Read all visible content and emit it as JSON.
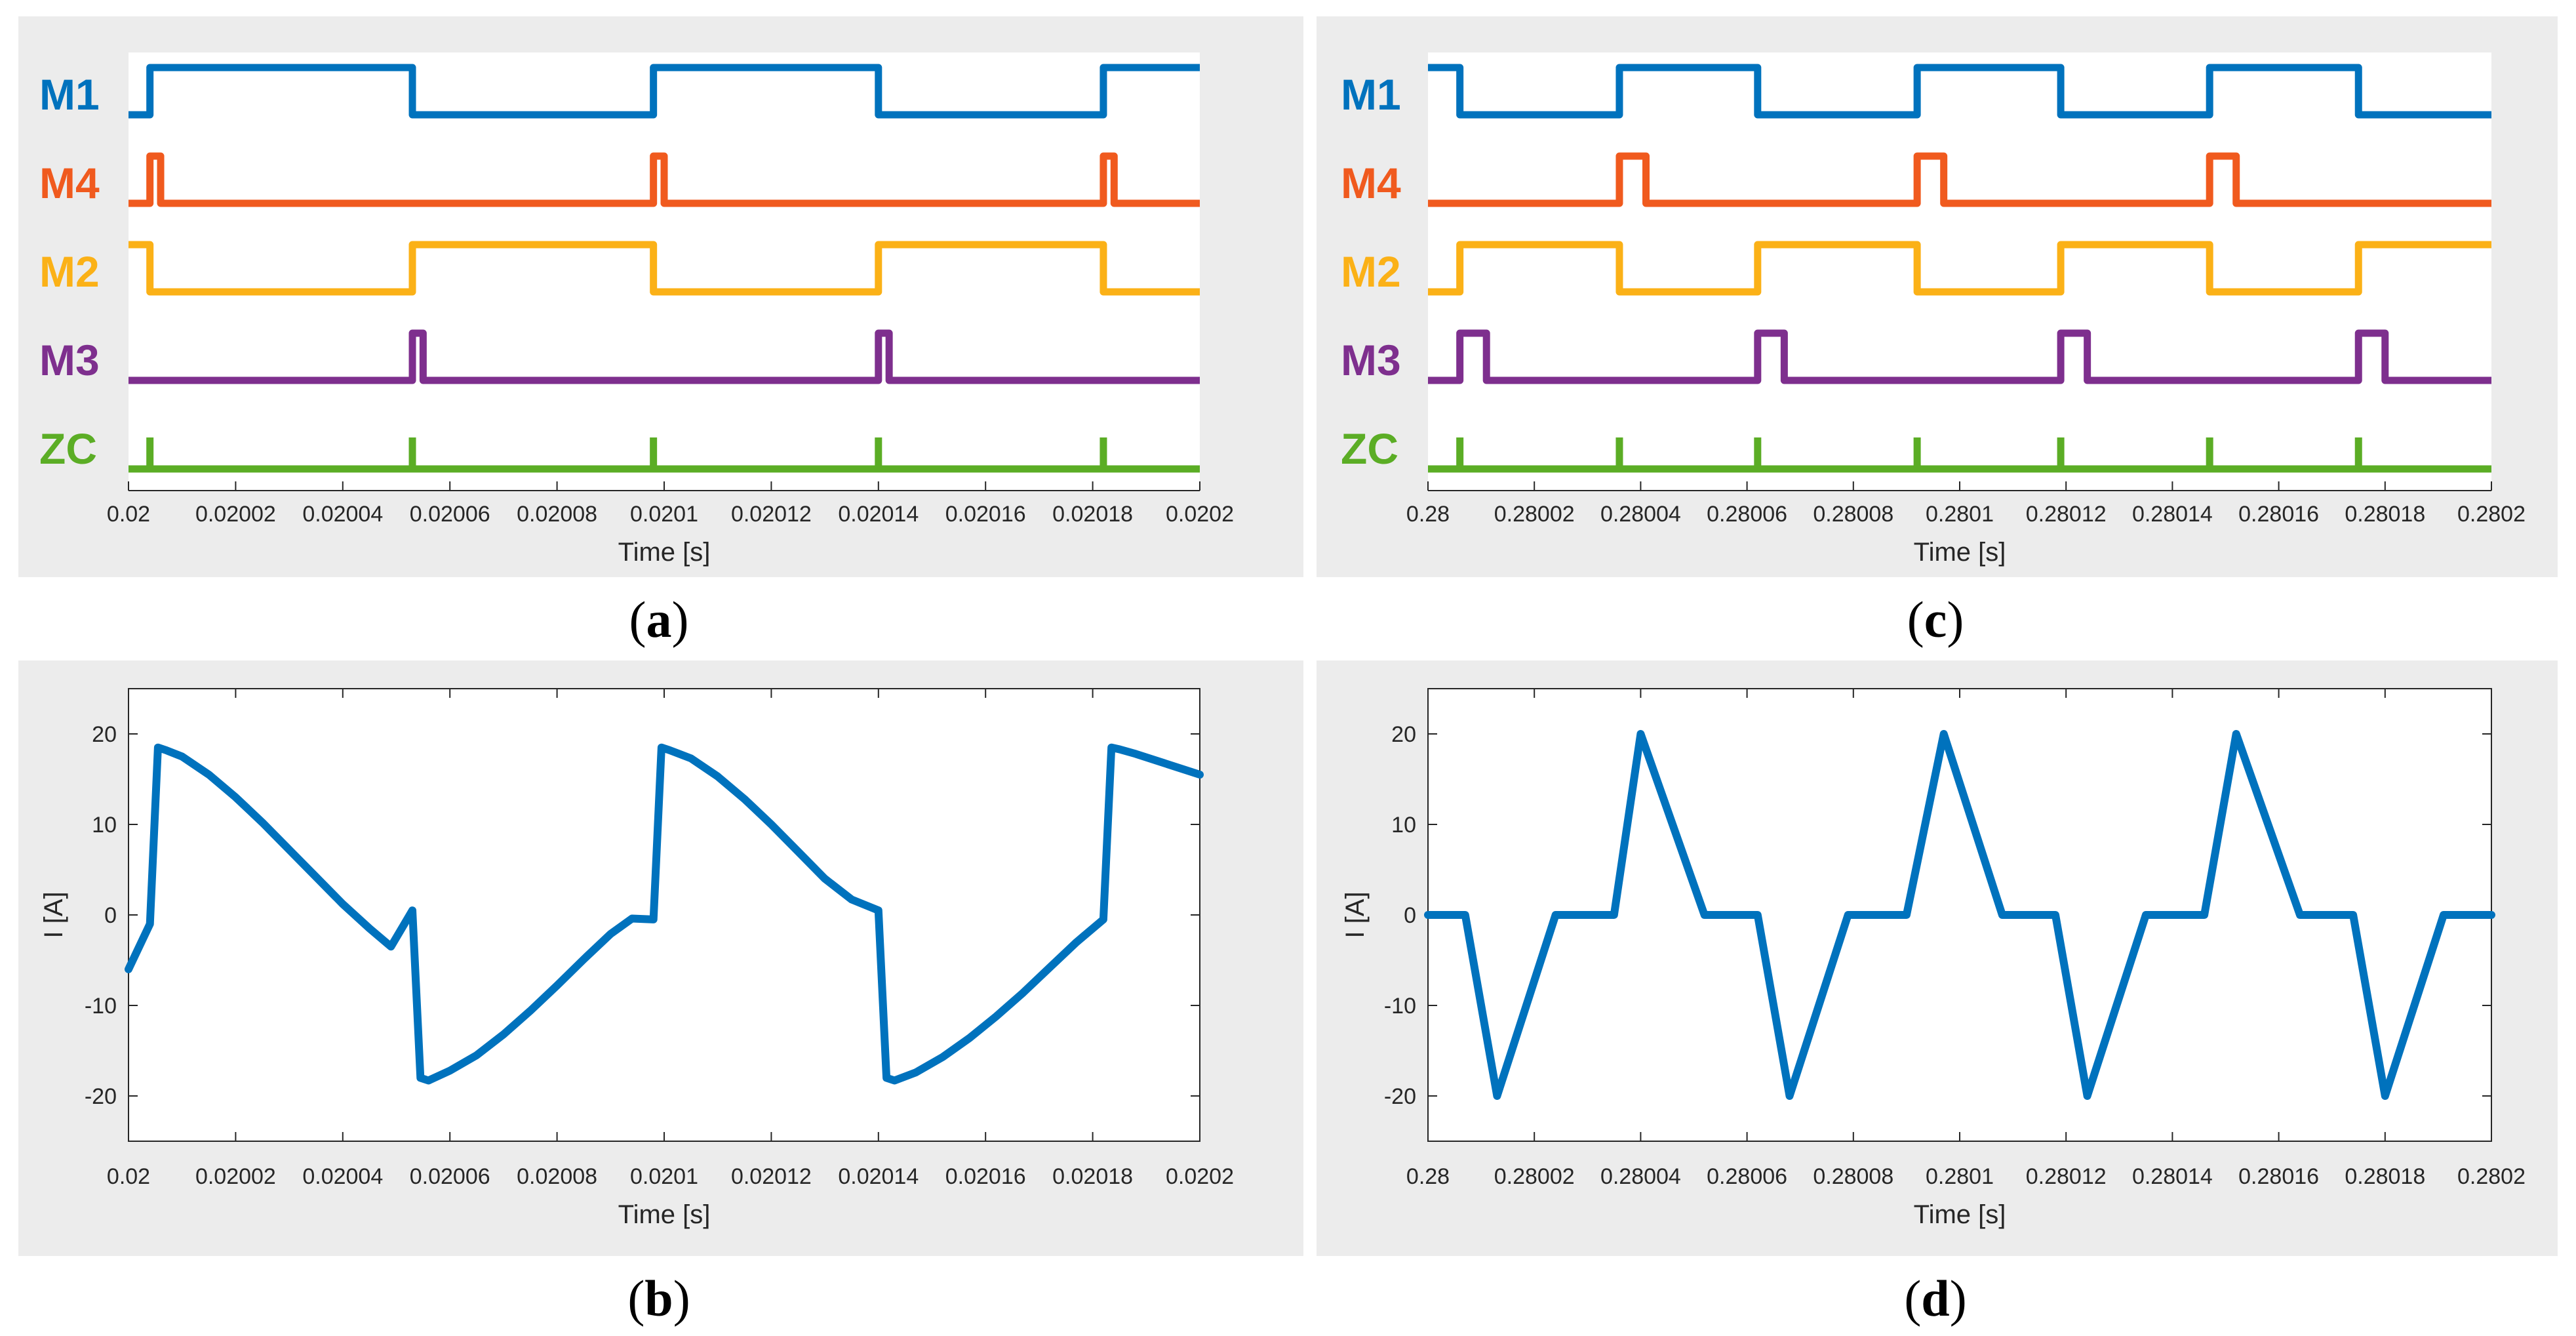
{
  "chart_data": [
    {
      "id": "a",
      "type": "line",
      "subtype": "digital-timing",
      "caption": "a",
      "xlabel": "Time [s]",
      "xlim": [
        0.02,
        0.0202
      ],
      "xticks": [
        "0.02",
        "0.02002",
        "0.02004",
        "0.02006",
        "0.02008",
        "0.0201",
        "0.02012",
        "0.02014",
        "0.02016",
        "0.02018",
        "0.0202"
      ],
      "series": [
        {
          "name": "M1",
          "color": "#0072BD",
          "edges": [
            0.020004,
            0.020053,
            0.020098,
            0.02014,
            0.020182
          ],
          "initial": 0
        },
        {
          "name": "M4",
          "color": "#F05A1E",
          "edges": [
            0.020004,
            0.020006,
            0.020098,
            0.0201,
            0.020182,
            0.020184
          ],
          "initial": 0
        },
        {
          "name": "M2",
          "color": "#FBB117",
          "edges": [
            0.020004,
            0.020053,
            0.020098,
            0.02014,
            0.020182
          ],
          "initial": 1
        },
        {
          "name": "M3",
          "color": "#7E2F8E",
          "edges": [
            0.020053,
            0.020055,
            0.02014,
            0.020142
          ],
          "initial": 0
        },
        {
          "name": "ZC",
          "color": "#5BAD25",
          "pulses": [
            0.020004,
            0.020053,
            0.020098,
            0.02014,
            0.020182
          ]
        }
      ]
    },
    {
      "id": "b",
      "type": "line",
      "caption": "b",
      "xlabel": "Time [s]",
      "ylabel": "I [A]",
      "xlim": [
        0.02,
        0.0202
      ],
      "ylim": [
        -25,
        25
      ],
      "xticks": [
        "0.02",
        "0.02002",
        "0.02004",
        "0.02006",
        "0.02008",
        "0.0201",
        "0.02012",
        "0.02014",
        "0.02016",
        "0.02018",
        "0.0202"
      ],
      "yticks": [
        "20",
        "10",
        "0",
        "-10",
        "-20"
      ],
      "color": "#0072BD",
      "x": [
        0.02,
        0.020004,
        0.0200055,
        0.020007,
        0.02001,
        0.020015,
        0.02002,
        0.020025,
        0.02003,
        0.020035,
        0.02004,
        0.020045,
        0.020049,
        0.020053,
        0.0200545,
        0.020056,
        0.02006,
        0.020065,
        0.02007,
        0.020075,
        0.02008,
        0.020085,
        0.02009,
        0.020094,
        0.020098,
        0.0200995,
        0.020101,
        0.020105,
        0.02011,
        0.020115,
        0.02012,
        0.020125,
        0.02013,
        0.020135,
        0.02014,
        0.0201415,
        0.020143,
        0.020147,
        0.020152,
        0.020157,
        0.020162,
        0.020167,
        0.020172,
        0.020177,
        0.020182,
        0.0201835,
        0.020185,
        0.020188,
        0.0202
      ],
      "y": [
        -6,
        -1,
        18.5,
        18.2,
        17.5,
        15.5,
        13,
        10.2,
        7.2,
        4.2,
        1.2,
        -1.5,
        -3.5,
        0.5,
        -18,
        -18.3,
        -17.2,
        -15.5,
        -13.2,
        -10.6,
        -7.8,
        -4.9,
        -2.1,
        -0.4,
        -0.5,
        18.5,
        18.2,
        17.3,
        15.3,
        12.8,
        10,
        7,
        4,
        1.7,
        0.5,
        -18,
        -18.3,
        -17.4,
        -15.7,
        -13.6,
        -11.2,
        -8.6,
        -5.8,
        -3,
        -0.5,
        18.5,
        18.3,
        17.8,
        15.5
      ]
    },
    {
      "id": "c",
      "type": "line",
      "subtype": "digital-timing",
      "caption": "c",
      "xlabel": "Time [s]",
      "xlim": [
        0.28,
        0.2802
      ],
      "xticks": [
        "0.28",
        "0.28002",
        "0.28004",
        "0.28006",
        "0.28008",
        "0.2801",
        "0.28012",
        "0.28014",
        "0.28016",
        "0.28018",
        "0.2802"
      ],
      "series": [
        {
          "name": "M1",
          "color": "#0072BD",
          "edges": [
            0.280006,
            0.280036,
            0.280062,
            0.280092,
            0.280119,
            0.280147,
            0.280175
          ],
          "initial": 1
        },
        {
          "name": "M4",
          "color": "#F05A1E",
          "edges": [
            0.280036,
            0.280041,
            0.280092,
            0.280097,
            0.280147,
            0.280152
          ],
          "initial": 0
        },
        {
          "name": "M2",
          "color": "#FBB117",
          "edges": [
            0.280006,
            0.280036,
            0.280062,
            0.280092,
            0.280119,
            0.280147,
            0.280175
          ],
          "initial": 0
        },
        {
          "name": "M3",
          "color": "#7E2F8E",
          "edges": [
            0.280006,
            0.280011,
            0.280062,
            0.280067,
            0.280119,
            0.280124,
            0.280175,
            0.28018
          ],
          "initial": 0
        },
        {
          "name": "ZC",
          "color": "#5BAD25",
          "pulses": [
            0.280006,
            0.280036,
            0.280062,
            0.280092,
            0.280119,
            0.280147,
            0.280175
          ]
        }
      ]
    },
    {
      "id": "d",
      "type": "line",
      "caption": "d",
      "xlabel": "Time [s]",
      "ylabel": "I [A]",
      "xlim": [
        0.28,
        0.2802
      ],
      "ylim": [
        -25,
        25
      ],
      "xticks": [
        "0.28",
        "0.28002",
        "0.28004",
        "0.28006",
        "0.28008",
        "0.2801",
        "0.28012",
        "0.28014",
        "0.28016",
        "0.28018",
        "0.2802"
      ],
      "yticks": [
        "20",
        "10",
        "0",
        "-10",
        "-20"
      ],
      "color": "#0072BD",
      "x": [
        0.28,
        0.280007,
        0.280013,
        0.280024,
        0.280035,
        0.28004,
        0.280052,
        0.280062,
        0.280068,
        0.280079,
        0.28009,
        0.280097,
        0.280108,
        0.280118,
        0.280124,
        0.280135,
        0.280146,
        0.280152,
        0.280164,
        0.280174,
        0.28018,
        0.280191,
        0.2802
      ],
      "y": [
        0,
        0,
        -20,
        0,
        0,
        20,
        0,
        0,
        -20,
        0,
        0,
        20,
        0,
        0,
        -20,
        0,
        0,
        20,
        0,
        0,
        -20,
        0,
        0
      ]
    }
  ]
}
